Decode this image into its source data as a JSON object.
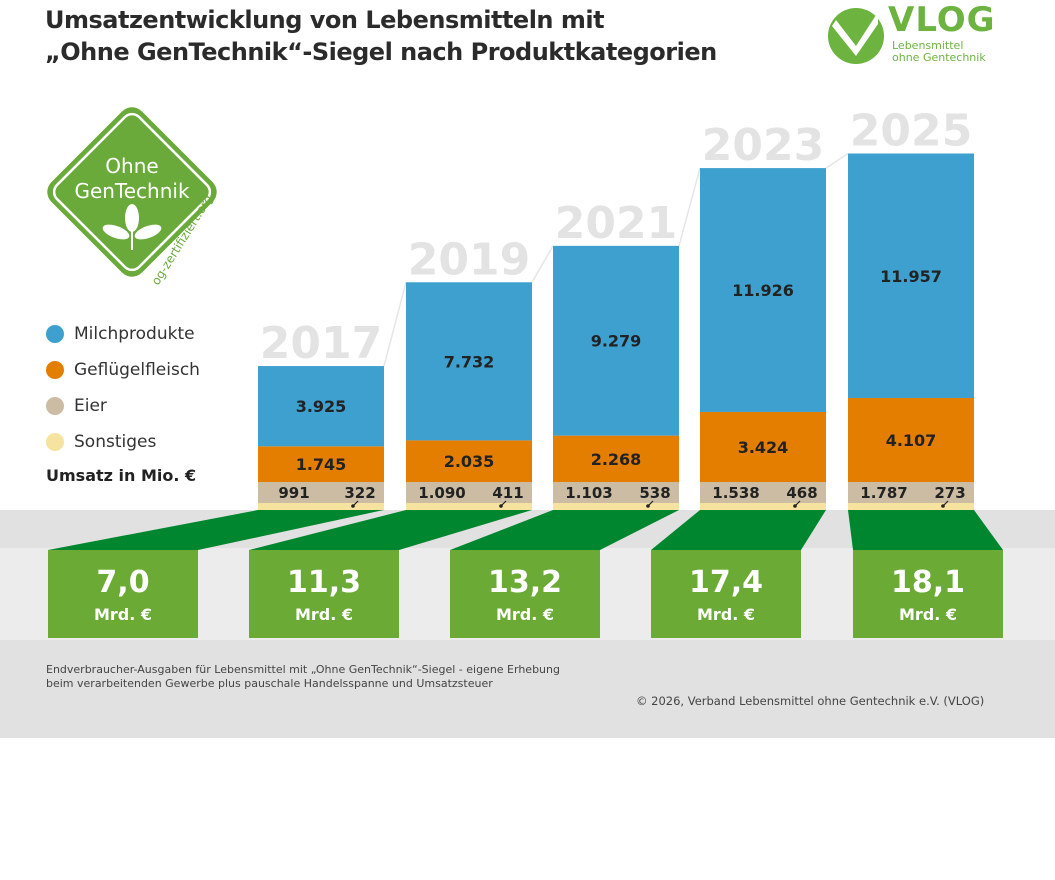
{
  "title_line1": "Umsatzentwicklung von Lebensmitteln mit",
  "title_line2": "„Ohne GenTechnik“-Siegel nach Produktkategorien",
  "logo": {
    "name": "VLOG",
    "subtitle_line1": "Lebensmittel",
    "subtitle_line2": "ohne Gentechnik",
    "color": "#6cb33f"
  },
  "seal": {
    "line1": "Ohne",
    "line2": "GenTechnik",
    "url": "og-zertifiziert.org",
    "icon": "leaf-plant-icon",
    "color": "#6aaa3a"
  },
  "legend": [
    {
      "label": "Milchprodukte",
      "color": "#3ea0cf"
    },
    {
      "label": "Geflügelfleisch",
      "color": "#e47e00"
    },
    {
      "label": "Eier",
      "color": "#cbbca3"
    },
    {
      "label": "Sonstiges",
      "color": "#f6e3a0"
    }
  ],
  "unit_label": "Umsatz in Mio. €",
  "footer_note": "Endverbraucher-Ausgaben für Lebensmittel mit „Ohne GenTechnik“-Siegel - eigene Erhebung beim verarbeitenden Gewerbe plus pauschale Handelsspanne und Umsatzsteuer",
  "copyright": "© 2026, Verband Lebensmittel ohne Gentechnik e.V. (VLOG)",
  "colors": {
    "total_box": "#6aaa35",
    "connector": "#00862f",
    "band": "#e1e1e1",
    "year_label": "#e3e3e3"
  },
  "chart_data": {
    "type": "bar",
    "stacked": true,
    "title": "Umsatzentwicklung von Lebensmitteln mit „Ohne GenTechnik“-Siegel nach Produktkategorien",
    "ylabel": "Umsatz in Mio. €",
    "categories": [
      "2017",
      "2019",
      "2021",
      "2023",
      "2025"
    ],
    "series": [
      {
        "name": "Sonstiges",
        "values": [
          322,
          411,
          538,
          468,
          273
        ],
        "labels": [
          "322",
          "411",
          "538",
          "468",
          "273"
        ]
      },
      {
        "name": "Eier",
        "values": [
          991,
          1090,
          1103,
          1538,
          1787
        ],
        "labels": [
          "991",
          "1.090",
          "1.103",
          "1.538",
          "1.787"
        ]
      },
      {
        "name": "Geflügelfleisch",
        "values": [
          1745,
          2035,
          2268,
          3424,
          4107
        ],
        "labels": [
          "1.745",
          "2.035",
          "2.268",
          "3.424",
          "4.107"
        ]
      },
      {
        "name": "Milchprodukte",
        "values": [
          3925,
          7732,
          9279,
          11926,
          11957
        ],
        "labels": [
          "3.925",
          "7.732",
          "9.279",
          "11.926",
          "11.957"
        ]
      }
    ],
    "totals": [
      {
        "value": "7,0",
        "unit": "Mrd. €"
      },
      {
        "value": "11,3",
        "unit": "Mrd. €"
      },
      {
        "value": "13,2",
        "unit": "Mrd. €"
      },
      {
        "value": "17,4",
        "unit": "Mrd. €"
      },
      {
        "value": "18,1",
        "unit": "Mrd. €"
      }
    ],
    "legend_position": "left",
    "grid": false
  }
}
